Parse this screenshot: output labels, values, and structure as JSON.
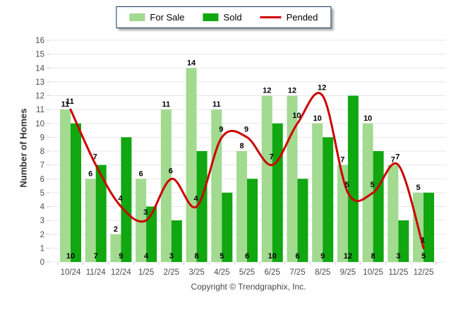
{
  "legend": {
    "for_sale_label": "For Sale",
    "sold_label": "Sold",
    "pended_label": "Pended"
  },
  "y_axis": {
    "title": "Number of Homes"
  },
  "footer": {
    "copyright": "Copyright © Trendgraphix, Inc."
  },
  "colors": {
    "for_sale": "#A2DA90",
    "sold": "#10A710",
    "pended": "#CC0000",
    "legend_border": "#17375E",
    "gridline": "#E7E7E7",
    "tick": "#CCCCCC",
    "axis_text": "#4D4D4D",
    "value_text": "#000000"
  },
  "chart_data": {
    "type": "bar",
    "categories": [
      "10/24",
      "11/24",
      "12/24",
      "1/25",
      "2/25",
      "3/25",
      "4/25",
      "5/25",
      "6/25",
      "7/25",
      "8/25",
      "9/25",
      "10/25",
      "11/25",
      "12/25"
    ],
    "series": [
      {
        "name": "For Sale",
        "type": "bar",
        "values": [
          11,
          6,
          2,
          6,
          11,
          14,
          11,
          8,
          12,
          12,
          10,
          7,
          10,
          7,
          5
        ]
      },
      {
        "name": "Sold",
        "type": "bar",
        "values": [
          10,
          7,
          9,
          4,
          3,
          8,
          5,
          6,
          10,
          6,
          9,
          12,
          8,
          3,
          5
        ]
      },
      {
        "name": "Pended",
        "type": "line",
        "values": [
          11,
          7,
          4,
          3,
          6,
          4,
          9,
          9,
          7,
          10,
          12,
          5,
          5,
          7,
          1
        ]
      }
    ],
    "title": "",
    "xlabel": "",
    "ylabel": "Number of Homes",
    "ylim": [
      0,
      16
    ],
    "y_tick_step": 1,
    "grid": true,
    "legend_position": "top-center"
  }
}
